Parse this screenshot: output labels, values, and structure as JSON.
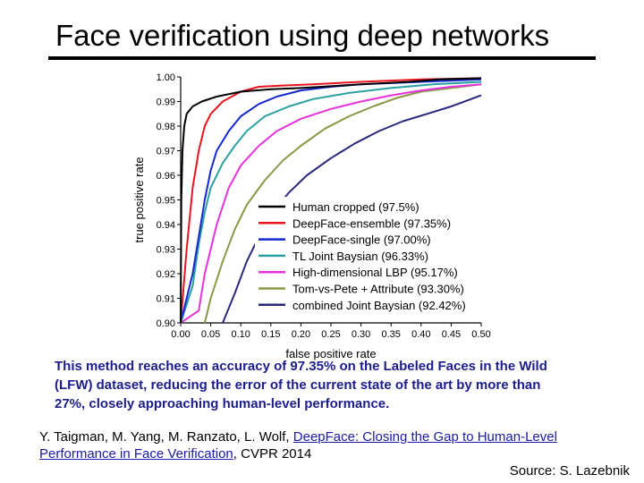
{
  "slide": {
    "title": "Face verification using deep networks",
    "description_lines": [
      "This method reaches an accuracy of 97.35% on the Labeled Faces in the Wild",
      "(LFW) dataset, reducing the error of the current state of the art by more than",
      "27%, closely approaching human-level performance."
    ],
    "citation_prefix": "Y. Taigman, M. Yang, M. Ranzato, L. Wolf, ",
    "citation_link_part1": "DeepFace: Closing the Gap to Human-Level",
    "citation_link_part2": "Performance in Face Verification",
    "citation_suffix": ", CVPR 2014",
    "source": "Source: S. Lazebnik"
  },
  "chart_data": {
    "type": "line",
    "title": "",
    "xlabel": "false positive rate",
    "ylabel": "true positive rate",
    "xlim": [
      0,
      0.5
    ],
    "ylim": [
      0.9,
      1.0
    ],
    "x_ticks": [
      "0.00",
      "0.05",
      "0.10",
      "0.15",
      "0.20",
      "0.25",
      "0.30",
      "0.35",
      "0.40",
      "0.45",
      "0.50"
    ],
    "y_ticks": [
      "0.90",
      "0.91",
      "0.92",
      "0.93",
      "0.94",
      "0.95",
      "0.96",
      "0.97",
      "0.98",
      "0.99",
      "1.00"
    ],
    "legend_position": "bottom-right",
    "series": [
      {
        "name": "Human cropped (97.5%)",
        "color": "#000000",
        "points": [
          [
            0.0,
            0.9
          ],
          [
            0.001,
            0.95
          ],
          [
            0.003,
            0.97
          ],
          [
            0.006,
            0.98
          ],
          [
            0.01,
            0.985
          ],
          [
            0.02,
            0.988
          ],
          [
            0.035,
            0.99
          ],
          [
            0.06,
            0.992
          ],
          [
            0.1,
            0.994
          ],
          [
            0.15,
            0.995
          ],
          [
            0.2,
            0.9955
          ],
          [
            0.3,
            0.997
          ],
          [
            0.38,
            0.998
          ],
          [
            0.43,
            0.999
          ],
          [
            0.5,
            0.9995
          ]
        ]
      },
      {
        "name": "DeepFace-ensemble (97.35%)",
        "color": "#e8141e",
        "points": [
          [
            0.0,
            0.9
          ],
          [
            0.01,
            0.93
          ],
          [
            0.02,
            0.955
          ],
          [
            0.03,
            0.97
          ],
          [
            0.04,
            0.98
          ],
          [
            0.05,
            0.985
          ],
          [
            0.07,
            0.99
          ],
          [
            0.1,
            0.994
          ],
          [
            0.13,
            0.996
          ],
          [
            0.17,
            0.9965
          ],
          [
            0.22,
            0.997
          ],
          [
            0.3,
            0.998
          ],
          [
            0.4,
            0.999
          ],
          [
            0.5,
            0.9995
          ]
        ]
      },
      {
        "name": "DeepFace-single (97.00%)",
        "color": "#1428d2",
        "points": [
          [
            0.0,
            0.9
          ],
          [
            0.02,
            0.92
          ],
          [
            0.03,
            0.935
          ],
          [
            0.04,
            0.95
          ],
          [
            0.05,
            0.962
          ],
          [
            0.06,
            0.97
          ],
          [
            0.08,
            0.978
          ],
          [
            0.1,
            0.984
          ],
          [
            0.13,
            0.989
          ],
          [
            0.16,
            0.992
          ],
          [
            0.2,
            0.9945
          ],
          [
            0.25,
            0.996
          ],
          [
            0.3,
            0.997
          ],
          [
            0.4,
            0.998
          ],
          [
            0.5,
            0.999
          ]
        ]
      },
      {
        "name": "TL Joint Baysian (96.33%)",
        "color": "#2aa0a0",
        "points": [
          [
            0.0,
            0.9
          ],
          [
            0.02,
            0.915
          ],
          [
            0.03,
            0.932
          ],
          [
            0.04,
            0.945
          ],
          [
            0.05,
            0.955
          ],
          [
            0.07,
            0.965
          ],
          [
            0.09,
            0.972
          ],
          [
            0.11,
            0.978
          ],
          [
            0.14,
            0.984
          ],
          [
            0.18,
            0.988
          ],
          [
            0.22,
            0.991
          ],
          [
            0.28,
            0.9935
          ],
          [
            0.35,
            0.9955
          ],
          [
            0.42,
            0.997
          ],
          [
            0.5,
            0.998
          ]
        ]
      },
      {
        "name": "High-dimensional LBP (95.17%)",
        "color": "#e632dc",
        "points": [
          [
            0.0,
            0.9
          ],
          [
            0.03,
            0.905
          ],
          [
            0.04,
            0.92
          ],
          [
            0.06,
            0.94
          ],
          [
            0.08,
            0.955
          ],
          [
            0.1,
            0.964
          ],
          [
            0.13,
            0.972
          ],
          [
            0.16,
            0.978
          ],
          [
            0.2,
            0.983
          ],
          [
            0.25,
            0.987
          ],
          [
            0.3,
            0.99
          ],
          [
            0.35,
            0.9925
          ],
          [
            0.4,
            0.9945
          ],
          [
            0.45,
            0.996
          ],
          [
            0.5,
            0.997
          ]
        ]
      },
      {
        "name": "Tom-vs-Pete + Attribute (93.30%)",
        "color": "#8c9646",
        "points": [
          [
            0.04,
            0.9
          ],
          [
            0.05,
            0.91
          ],
          [
            0.07,
            0.925
          ],
          [
            0.09,
            0.938
          ],
          [
            0.11,
            0.948
          ],
          [
            0.14,
            0.958
          ],
          [
            0.17,
            0.966
          ],
          [
            0.2,
            0.972
          ],
          [
            0.24,
            0.979
          ],
          [
            0.28,
            0.984
          ],
          [
            0.32,
            0.988
          ],
          [
            0.36,
            0.9915
          ],
          [
            0.4,
            0.994
          ],
          [
            0.45,
            0.9955
          ],
          [
            0.5,
            0.997
          ]
        ]
      },
      {
        "name": "combined Joint Baysian (92.42%)",
        "color": "#28287a",
        "points": [
          [
            0.07,
            0.9
          ],
          [
            0.09,
            0.912
          ],
          [
            0.11,
            0.925
          ],
          [
            0.13,
            0.935
          ],
          [
            0.15,
            0.944
          ],
          [
            0.18,
            0.953
          ],
          [
            0.21,
            0.96
          ],
          [
            0.25,
            0.967
          ],
          [
            0.29,
            0.973
          ],
          [
            0.33,
            0.978
          ],
          [
            0.37,
            0.982
          ],
          [
            0.41,
            0.985
          ],
          [
            0.45,
            0.988
          ],
          [
            0.5,
            0.9925
          ]
        ]
      }
    ]
  }
}
